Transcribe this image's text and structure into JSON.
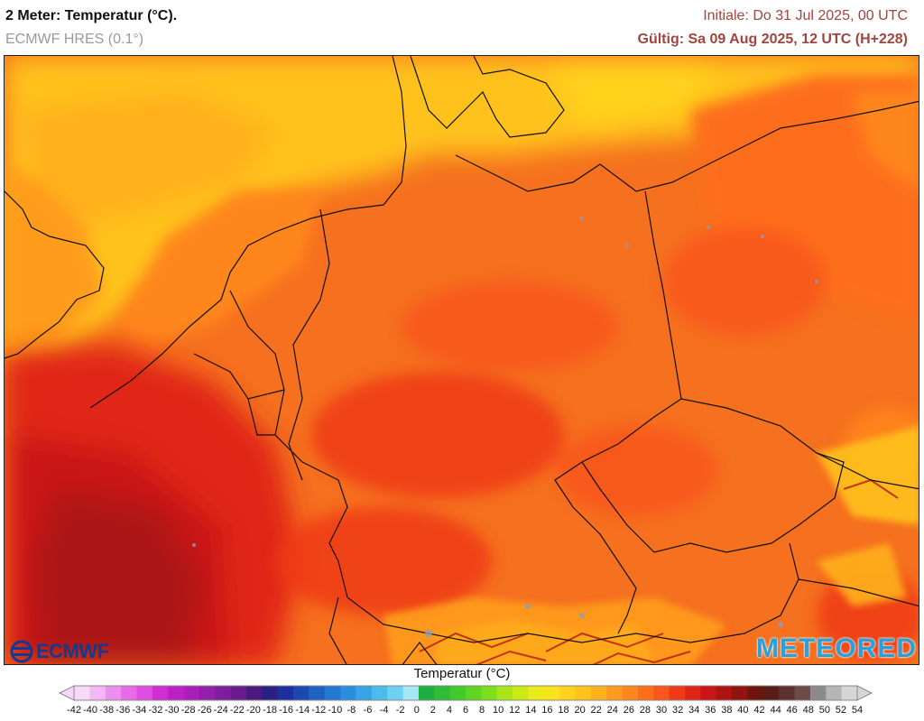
{
  "header": {
    "title": "2 Meter: Temperatur (°C).",
    "model": "ECMWF HRES (0.1°)",
    "init": "Initiale: Do 31 Jul 2025, 00 UTC",
    "valid": "Gültig: Sa 09 Aug 2025, 12 UTC (H+228)"
  },
  "logos": {
    "ecmwf": "ECMWF",
    "meteored": "METEORED"
  },
  "legend": {
    "title": "Temperatur (°C)",
    "ticks": [
      -42,
      -40,
      -38,
      -36,
      -34,
      -32,
      -30,
      -28,
      -26,
      -24,
      -22,
      -20,
      -18,
      -16,
      -14,
      -12,
      -10,
      -8,
      -6,
      -4,
      -2,
      0,
      2,
      4,
      6,
      8,
      10,
      12,
      14,
      16,
      18,
      20,
      22,
      24,
      26,
      28,
      30,
      32,
      34,
      36,
      38,
      40,
      42,
      44,
      46,
      48,
      50,
      52,
      54
    ],
    "colors": [
      "#f7d9f7",
      "#f3b8f3",
      "#ee8fee",
      "#e96ae9",
      "#e04ee0",
      "#d02fd0",
      "#bb22c5",
      "#a81fb9",
      "#9320ab",
      "#7c1f9c",
      "#661c8c",
      "#4a1a7e",
      "#2b1f86",
      "#1c2f9c",
      "#1a49b0",
      "#1f62c3",
      "#2379d1",
      "#2a8ede",
      "#37a4e6",
      "#4cbbec",
      "#6fd1f1",
      "#a6e8f6",
      "#1fae3f",
      "#2ebd35",
      "#42c92b",
      "#5dd522",
      "#7fdd1c",
      "#a7e41a",
      "#cbe817",
      "#eaea18",
      "#fbe11a",
      "#fed11c",
      "#ffc21d",
      "#ffb01d",
      "#ff9c1d",
      "#ff861c",
      "#fd6e1b",
      "#f8561a",
      "#ef3a18",
      "#e02516",
      "#c91515",
      "#ad1412",
      "#8f1511",
      "#6f1510",
      "#5a1c18",
      "#5d3030",
      "#6d4a4a",
      "#8a8a8a",
      "#b5b5b5",
      "#d6d6d6"
    ]
  },
  "map": {
    "region": "Deutschland und Mitteleuropa",
    "dominant_color": "#f46a1f",
    "hot_color": "#d9251c",
    "cool_color": "#ffc21d"
  }
}
